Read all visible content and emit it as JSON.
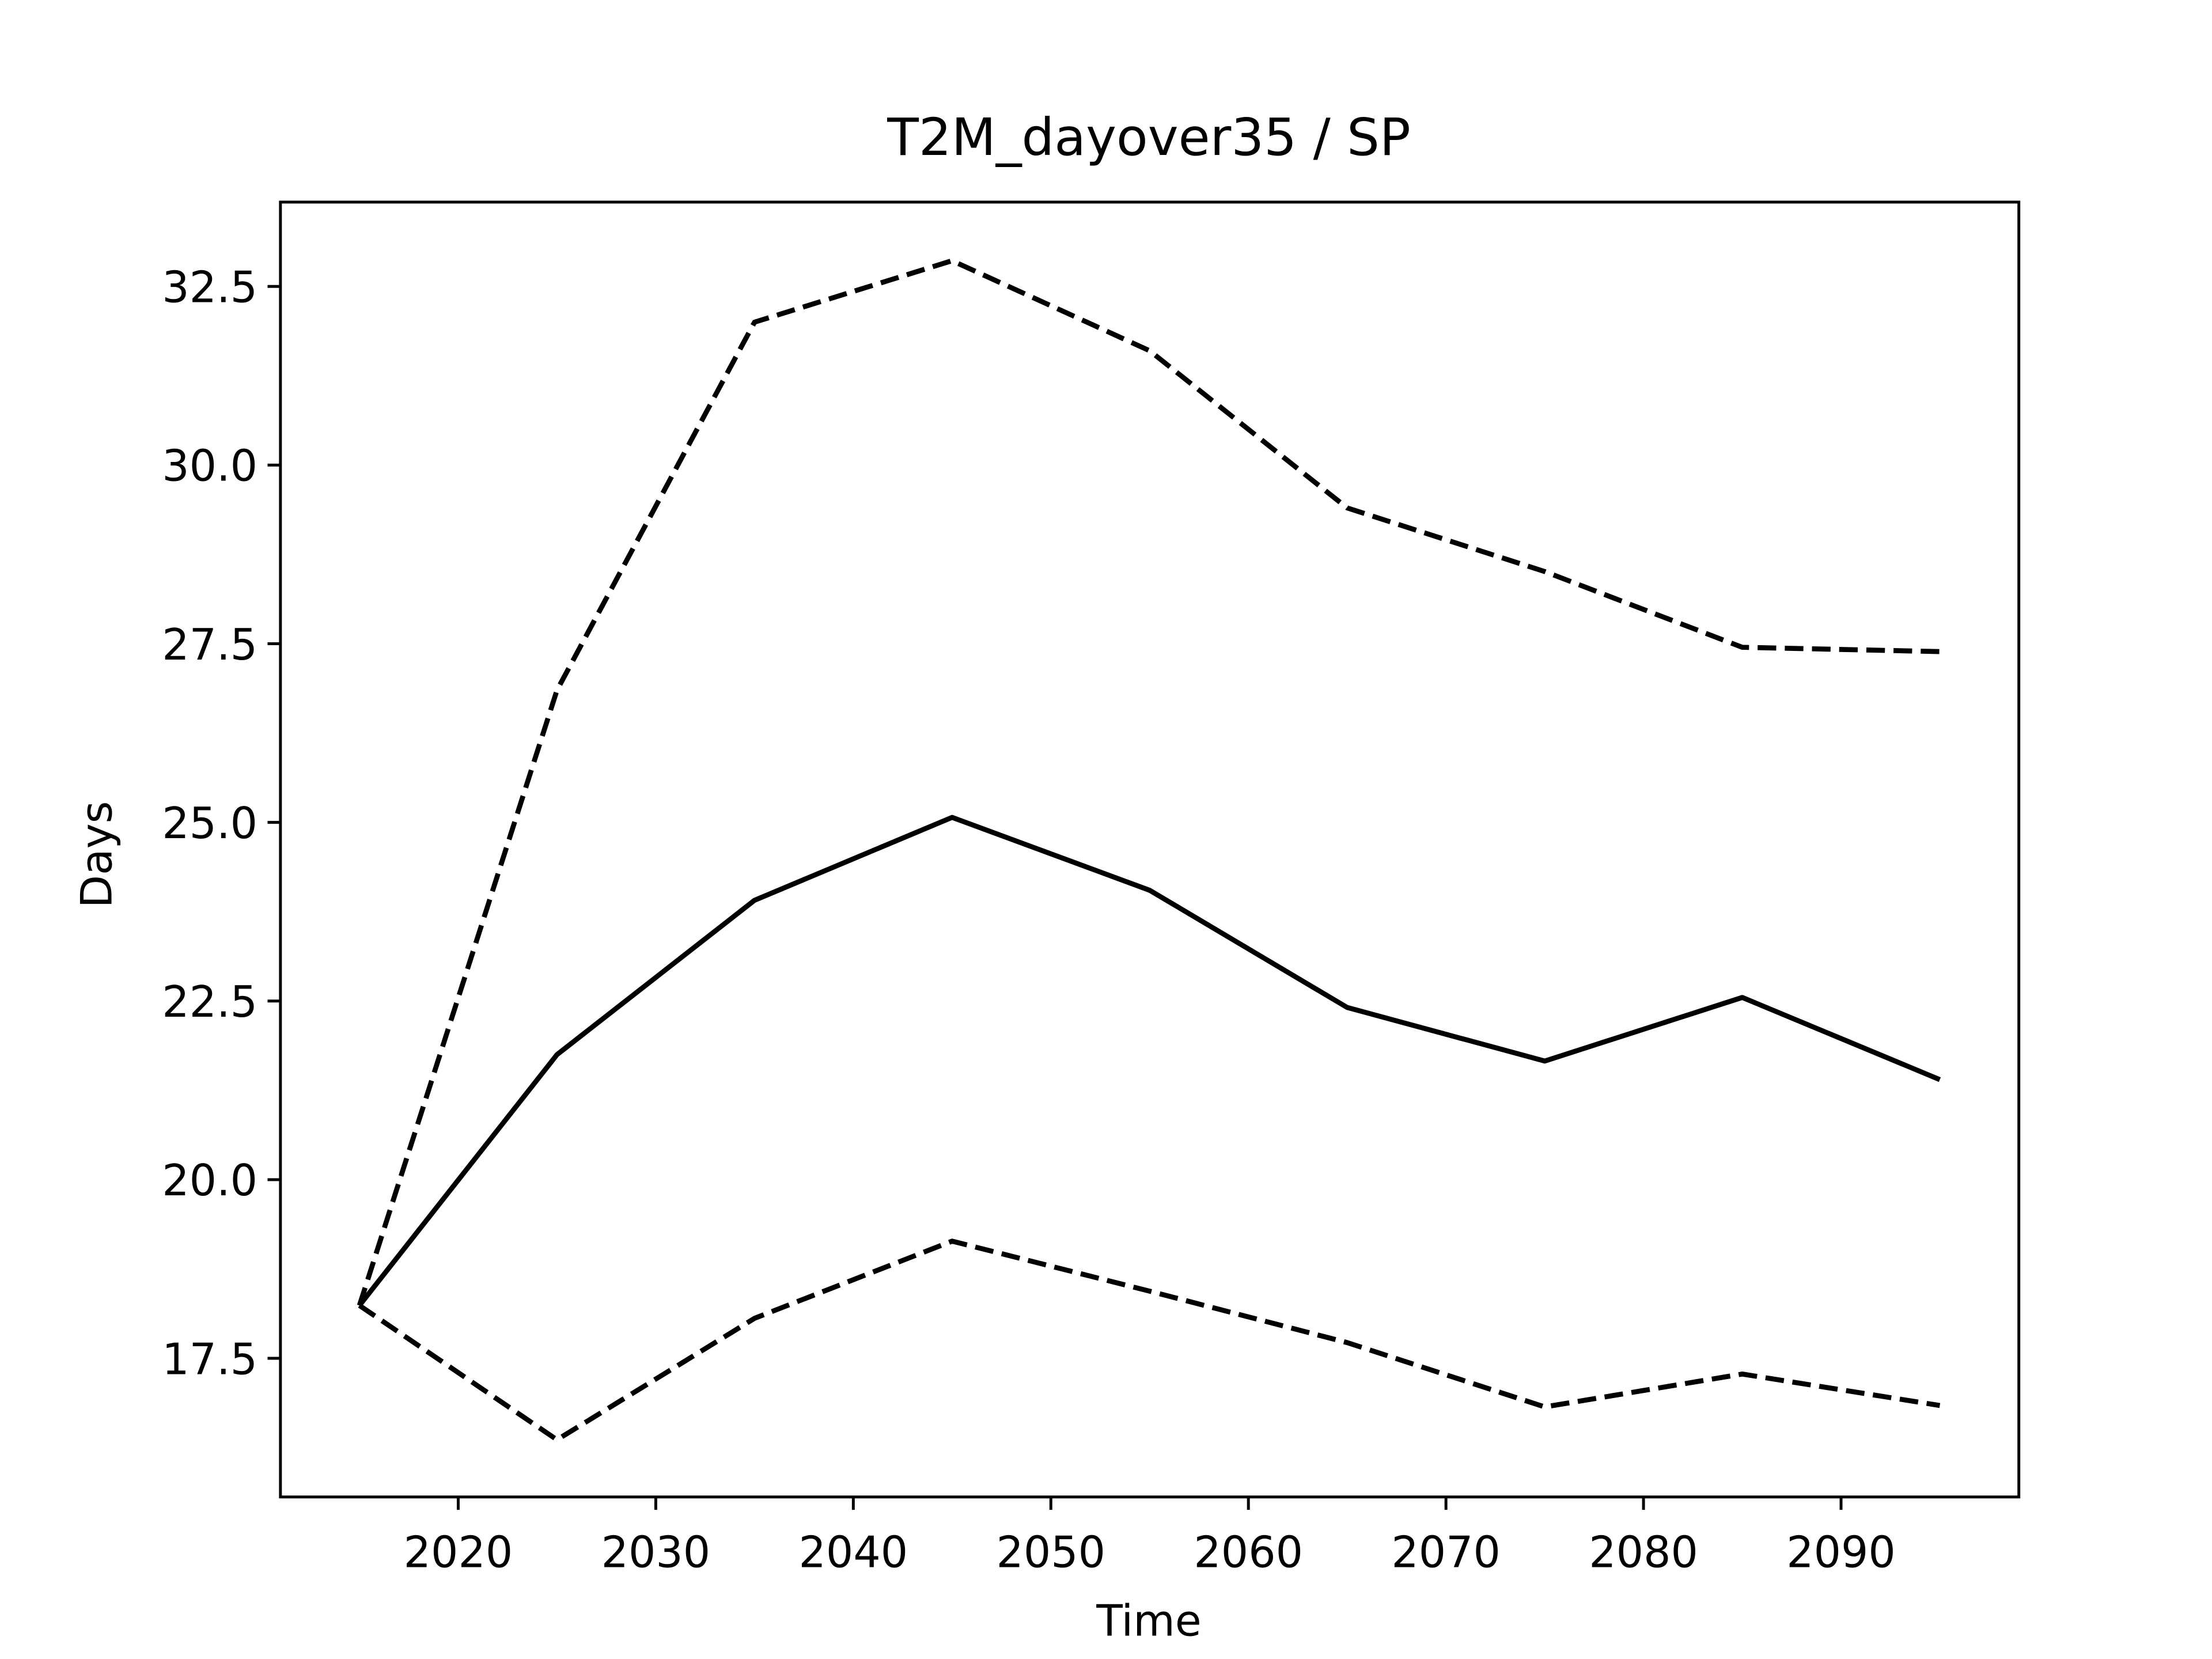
{
  "chart_data": {
    "type": "line",
    "title": "T2M_dayover35 / SP",
    "xlabel": "Time",
    "ylabel": "Days",
    "x": [
      2015,
      2025,
      2035,
      2045,
      2055,
      2065,
      2075,
      2085,
      2095
    ],
    "series": [
      {
        "color": "#000000",
        "dash": "solid",
        "values": [
          18.24,
          21.75,
          23.91,
          25.07,
          24.05,
          22.41,
          21.66,
          22.55,
          21.4
        ]
      },
      {
        "color": "#000000",
        "dash": "dashed",
        "values": [
          18.24,
          26.85,
          32.0,
          32.86,
          31.6,
          29.4,
          28.51,
          27.45,
          27.39
        ]
      },
      {
        "color": "#000000",
        "dash": "dashed",
        "values": [
          18.24,
          16.36,
          18.06,
          19.14,
          18.44,
          17.72,
          16.82,
          17.28,
          16.84
        ]
      }
    ],
    "xlim": [
      2011,
      2099
    ],
    "xticks": [
      2020,
      2030,
      2040,
      2050,
      2060,
      2070,
      2080,
      2090
    ],
    "ylim": [
      15.56,
      33.68
    ],
    "yticks": [
      17.5,
      {
        "value": 20,
        "label": "20.0"
      },
      22.5,
      {
        "value": 25,
        "label": "25.0"
      },
      27.5,
      {
        "value": 30,
        "label": "30.0"
      },
      32.5
    ]
  }
}
